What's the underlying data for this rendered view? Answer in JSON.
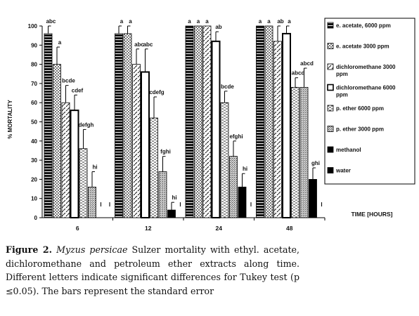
{
  "chart_data": {
    "type": "bar",
    "title": "",
    "ylabel": "% MORTALITY",
    "xlabel": "TIME [HOURS]",
    "ylim": [
      0,
      100
    ],
    "yticks": [
      "0",
      "10",
      "20",
      "30",
      "40",
      "50",
      "60",
      "70",
      "80",
      "90",
      "100"
    ],
    "categories": [
      "6",
      "12",
      "24",
      "48"
    ],
    "legend_position": "right",
    "grid": false,
    "series": [
      {
        "name": "e. acetate, 6000 ppm",
        "pattern": "solid-black-stripes",
        "values": [
          96,
          96,
          100,
          100
        ],
        "errors": [
          4,
          4,
          0,
          0
        ],
        "letters": [
          "abc",
          "a",
          "a",
          "a"
        ]
      },
      {
        "name": "e. acetate 3000 ppm",
        "pattern": "grey-check",
        "values": [
          80,
          96,
          100,
          100
        ],
        "errors": [
          9,
          4,
          0,
          0
        ],
        "letters": [
          "a",
          "a",
          "a",
          "a"
        ]
      },
      {
        "name": "dichloromethane 3000 ppm",
        "pattern": "dashed-diagonal",
        "values": [
          60,
          80,
          100,
          92
        ],
        "errors": [
          9,
          8,
          0,
          8
        ],
        "letters": [
          "bcde",
          "abc",
          "a",
          "ab"
        ]
      },
      {
        "name": "dichloromethane 6000 ppm",
        "pattern": "white-thick-border",
        "values": [
          56,
          76,
          92,
          96
        ],
        "errors": [
          8,
          12,
          5,
          4
        ],
        "letters": [
          "cdef",
          "abc",
          "ab",
          "a"
        ]
      },
      {
        "name": "p. ether 6000 ppm",
        "pattern": "dashed-horizontal",
        "values": [
          36,
          52,
          60,
          68
        ],
        "errors": [
          10,
          11,
          6,
          5
        ],
        "letters": [
          "defgh",
          "cdefg",
          "bcde",
          "abcd"
        ]
      },
      {
        "name": "p. ether 3000 ppm",
        "pattern": "grey-dots",
        "values": [
          16,
          24,
          32,
          68
        ],
        "errors": [
          8,
          8,
          8,
          10
        ],
        "letters": [
          "hi",
          "fghi",
          "efghi",
          "abcd"
        ]
      },
      {
        "name": "methanol",
        "pattern": "solid-black",
        "values": [
          0,
          4,
          16,
          20
        ],
        "errors": [
          0,
          4,
          7,
          6
        ],
        "letters": [
          "I",
          "hi",
          "hi",
          "ghi"
        ]
      },
      {
        "name": "water",
        "pattern": "solid-black",
        "values": [
          0,
          0,
          0,
          0
        ],
        "errors": [
          0,
          0,
          0,
          0
        ],
        "letters": [
          "I",
          "I",
          "I",
          "I"
        ]
      }
    ]
  },
  "caption": {
    "label": "Figure 2.",
    "species": "Myzus persicae",
    "text": " Sulzer mortality with ethyl. acetate, dichloromethane and petroleum ether extracts along time. Different letters indicate significant differences for Tukey test (p ≤0.05). The bars represent the standard error"
  }
}
